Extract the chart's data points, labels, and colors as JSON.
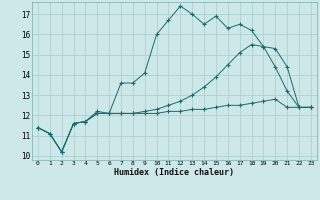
{
  "xlabel": "Humidex (Indice chaleur)",
  "bg_color": "#cce8e8",
  "grid_color": "#aacccc",
  "line_color": "#1a6b6b",
  "xlim": [
    -0.5,
    23.5
  ],
  "ylim": [
    9.8,
    17.6
  ],
  "yticks": [
    10,
    11,
    12,
    13,
    14,
    15,
    16,
    17
  ],
  "xticks": [
    0,
    1,
    2,
    3,
    4,
    5,
    6,
    7,
    8,
    9,
    10,
    11,
    12,
    13,
    14,
    15,
    16,
    17,
    18,
    19,
    20,
    21,
    22,
    23
  ],
  "line1_x": [
    0,
    1,
    2,
    3,
    4,
    5,
    6,
    7,
    8,
    9,
    10,
    11,
    12,
    13,
    14,
    15,
    16,
    17,
    18,
    19,
    20,
    21,
    22,
    23
  ],
  "line1_y": [
    11.4,
    11.1,
    10.2,
    11.6,
    11.7,
    12.2,
    12.1,
    13.6,
    13.6,
    14.1,
    16.0,
    16.7,
    17.4,
    17.0,
    16.5,
    16.9,
    16.3,
    16.5,
    16.2,
    15.4,
    14.4,
    13.2,
    12.4,
    12.4
  ],
  "line2_x": [
    0,
    1,
    2,
    3,
    4,
    5,
    6,
    7,
    8,
    9,
    10,
    11,
    12,
    13,
    14,
    15,
    16,
    17,
    18,
    19,
    20,
    21,
    22,
    23
  ],
  "line2_y": [
    11.4,
    11.1,
    10.2,
    11.6,
    11.7,
    12.1,
    12.1,
    12.1,
    12.1,
    12.2,
    12.3,
    12.5,
    12.7,
    13.0,
    13.4,
    13.9,
    14.5,
    15.1,
    15.5,
    15.4,
    15.3,
    14.4,
    12.4,
    12.4
  ],
  "line3_x": [
    0,
    1,
    2,
    3,
    4,
    5,
    6,
    7,
    8,
    9,
    10,
    11,
    12,
    13,
    14,
    15,
    16,
    17,
    18,
    19,
    20,
    21,
    22,
    23
  ],
  "line3_y": [
    11.4,
    11.1,
    10.2,
    11.6,
    11.7,
    12.1,
    12.1,
    12.1,
    12.1,
    12.1,
    12.1,
    12.2,
    12.2,
    12.3,
    12.3,
    12.4,
    12.5,
    12.5,
    12.6,
    12.7,
    12.8,
    12.4,
    12.4,
    12.4
  ]
}
